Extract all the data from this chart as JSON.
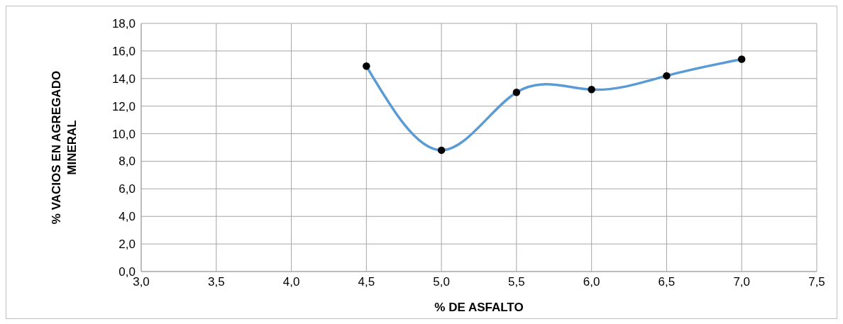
{
  "chart_data": {
    "type": "line",
    "xlabel": "% DE ASFALTO",
    "ylabel": "% VACIOS EN AGREGADO MINERAL",
    "x": [
      4.5,
      5.0,
      5.5,
      6.0,
      6.5,
      7.0
    ],
    "series": [
      {
        "color": "#5b9bd5",
        "values": [
          14.9,
          8.8,
          13.0,
          13.2,
          14.2,
          15.4
        ]
      }
    ],
    "xlim": [
      3,
      7.5
    ],
    "xticks": [
      {
        "value": 3,
        "label": "3,0"
      },
      {
        "value": 3.5,
        "label": "3,5"
      },
      {
        "value": 4,
        "label": "4,0"
      },
      {
        "value": 4.5,
        "label": "4,5"
      },
      {
        "value": 5,
        "label": "5,0"
      },
      {
        "value": 5.5,
        "label": "5,5"
      },
      {
        "value": 6,
        "label": "6,0"
      },
      {
        "value": 6.5,
        "label": "6,5"
      },
      {
        "value": 7,
        "label": "7,0"
      },
      {
        "value": 7.5,
        "label": "7,5"
      }
    ],
    "ylim": [
      0,
      18
    ],
    "yticks": [
      {
        "value": 0,
        "label": "0,0"
      },
      {
        "value": 2,
        "label": "2,0"
      },
      {
        "value": 4,
        "label": "4,0"
      },
      {
        "value": 6,
        "label": "6,0"
      },
      {
        "value": 8,
        "label": "8,0"
      },
      {
        "value": 10,
        "label": "10,0"
      },
      {
        "value": 12,
        "label": "12,0"
      },
      {
        "value": 14,
        "label": "14,0"
      },
      {
        "value": 16,
        "label": "16,0"
      },
      {
        "value": 18,
        "label": "18,0"
      }
    ],
    "grid": true,
    "marker": "circle",
    "line_style": "solid",
    "legend": false
  }
}
